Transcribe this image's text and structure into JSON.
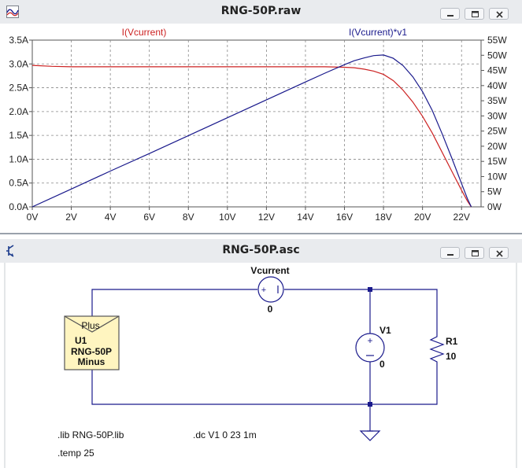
{
  "plot_window": {
    "title": "RNG-50P.raw",
    "trace_left_label": "I(Vcurrent)",
    "trace_right_label": "I(Vcurrent)*v1",
    "trace_left_color": "#cc2222",
    "trace_right_color": "#1a1a8c",
    "icon": "waveform-icon"
  },
  "schematic_window": {
    "title": "RNG-50P.asc",
    "icon": "transistor-icon",
    "vcurrent_label": "Vcurrent",
    "vcurrent_value": "0",
    "v1_label": "V1",
    "v1_value": "0",
    "r1_label": "R1",
    "r1_value": "10",
    "panel_plus": "Plus",
    "panel_name": "U1",
    "panel_model": "RNG-50P",
    "panel_minus": "Minus",
    "directive_lib": ".lib RNG-50P.lib",
    "directive_dc": ".dc V1 0 23 1m",
    "directive_temp": ".temp 25",
    "wire_color": "#1a1a8c",
    "panel_fill": "#fff5c0"
  },
  "window_controls": [
    "minimize-icon",
    "restore-icon",
    "close-icon"
  ],
  "chart_data": {
    "type": "line",
    "xlabel": "",
    "ylabel": "",
    "x_ticks": [
      "0V",
      "2V",
      "4V",
      "6V",
      "8V",
      "10V",
      "12V",
      "14V",
      "16V",
      "18V",
      "20V",
      "22V"
    ],
    "y_left_ticks": [
      "0.0A",
      "0.5A",
      "1.0A",
      "1.5A",
      "2.0A",
      "2.5A",
      "3.0A",
      "3.5A"
    ],
    "y_right_ticks": [
      "0W",
      "5W",
      "10W",
      "15W",
      "20W",
      "25W",
      "30W",
      "35W",
      "40W",
      "45W",
      "50W",
      "55W"
    ],
    "xlim": [
      0,
      23
    ],
    "ylim_left": [
      0,
      3.5
    ],
    "ylim_right": [
      0,
      55
    ],
    "grid": true,
    "series": [
      {
        "name": "I(Vcurrent)",
        "axis": "left",
        "x": [
          0,
          1,
          2,
          4,
          6,
          8,
          10,
          12,
          14,
          15,
          16,
          16.5,
          17,
          17.5,
          18,
          18.5,
          19,
          19.5,
          20,
          20.5,
          21,
          21.5,
          22,
          22.3,
          22.5
        ],
        "y": [
          2.97,
          2.95,
          2.94,
          2.94,
          2.94,
          2.94,
          2.94,
          2.94,
          2.94,
          2.94,
          2.93,
          2.92,
          2.89,
          2.85,
          2.78,
          2.65,
          2.45,
          2.2,
          1.9,
          1.55,
          1.15,
          0.75,
          0.35,
          0.12,
          0.0
        ]
      },
      {
        "name": "I(Vcurrent)*v1",
        "axis": "right",
        "x": [
          0,
          2,
          4,
          6,
          8,
          10,
          12,
          14,
          15,
          16,
          16.5,
          17,
          17.5,
          18,
          18.5,
          19,
          19.5,
          20,
          20.5,
          21,
          21.5,
          22,
          22.3,
          22.5
        ],
        "y": [
          0,
          5.9,
          11.8,
          17.6,
          23.5,
          29.4,
          35.3,
          41.2,
          44.1,
          46.9,
          48.2,
          49.1,
          49.9,
          50.1,
          49.0,
          46.6,
          42.9,
          38.0,
          31.8,
          24.2,
          16.1,
          7.7,
          2.7,
          0.0
        ]
      }
    ]
  }
}
